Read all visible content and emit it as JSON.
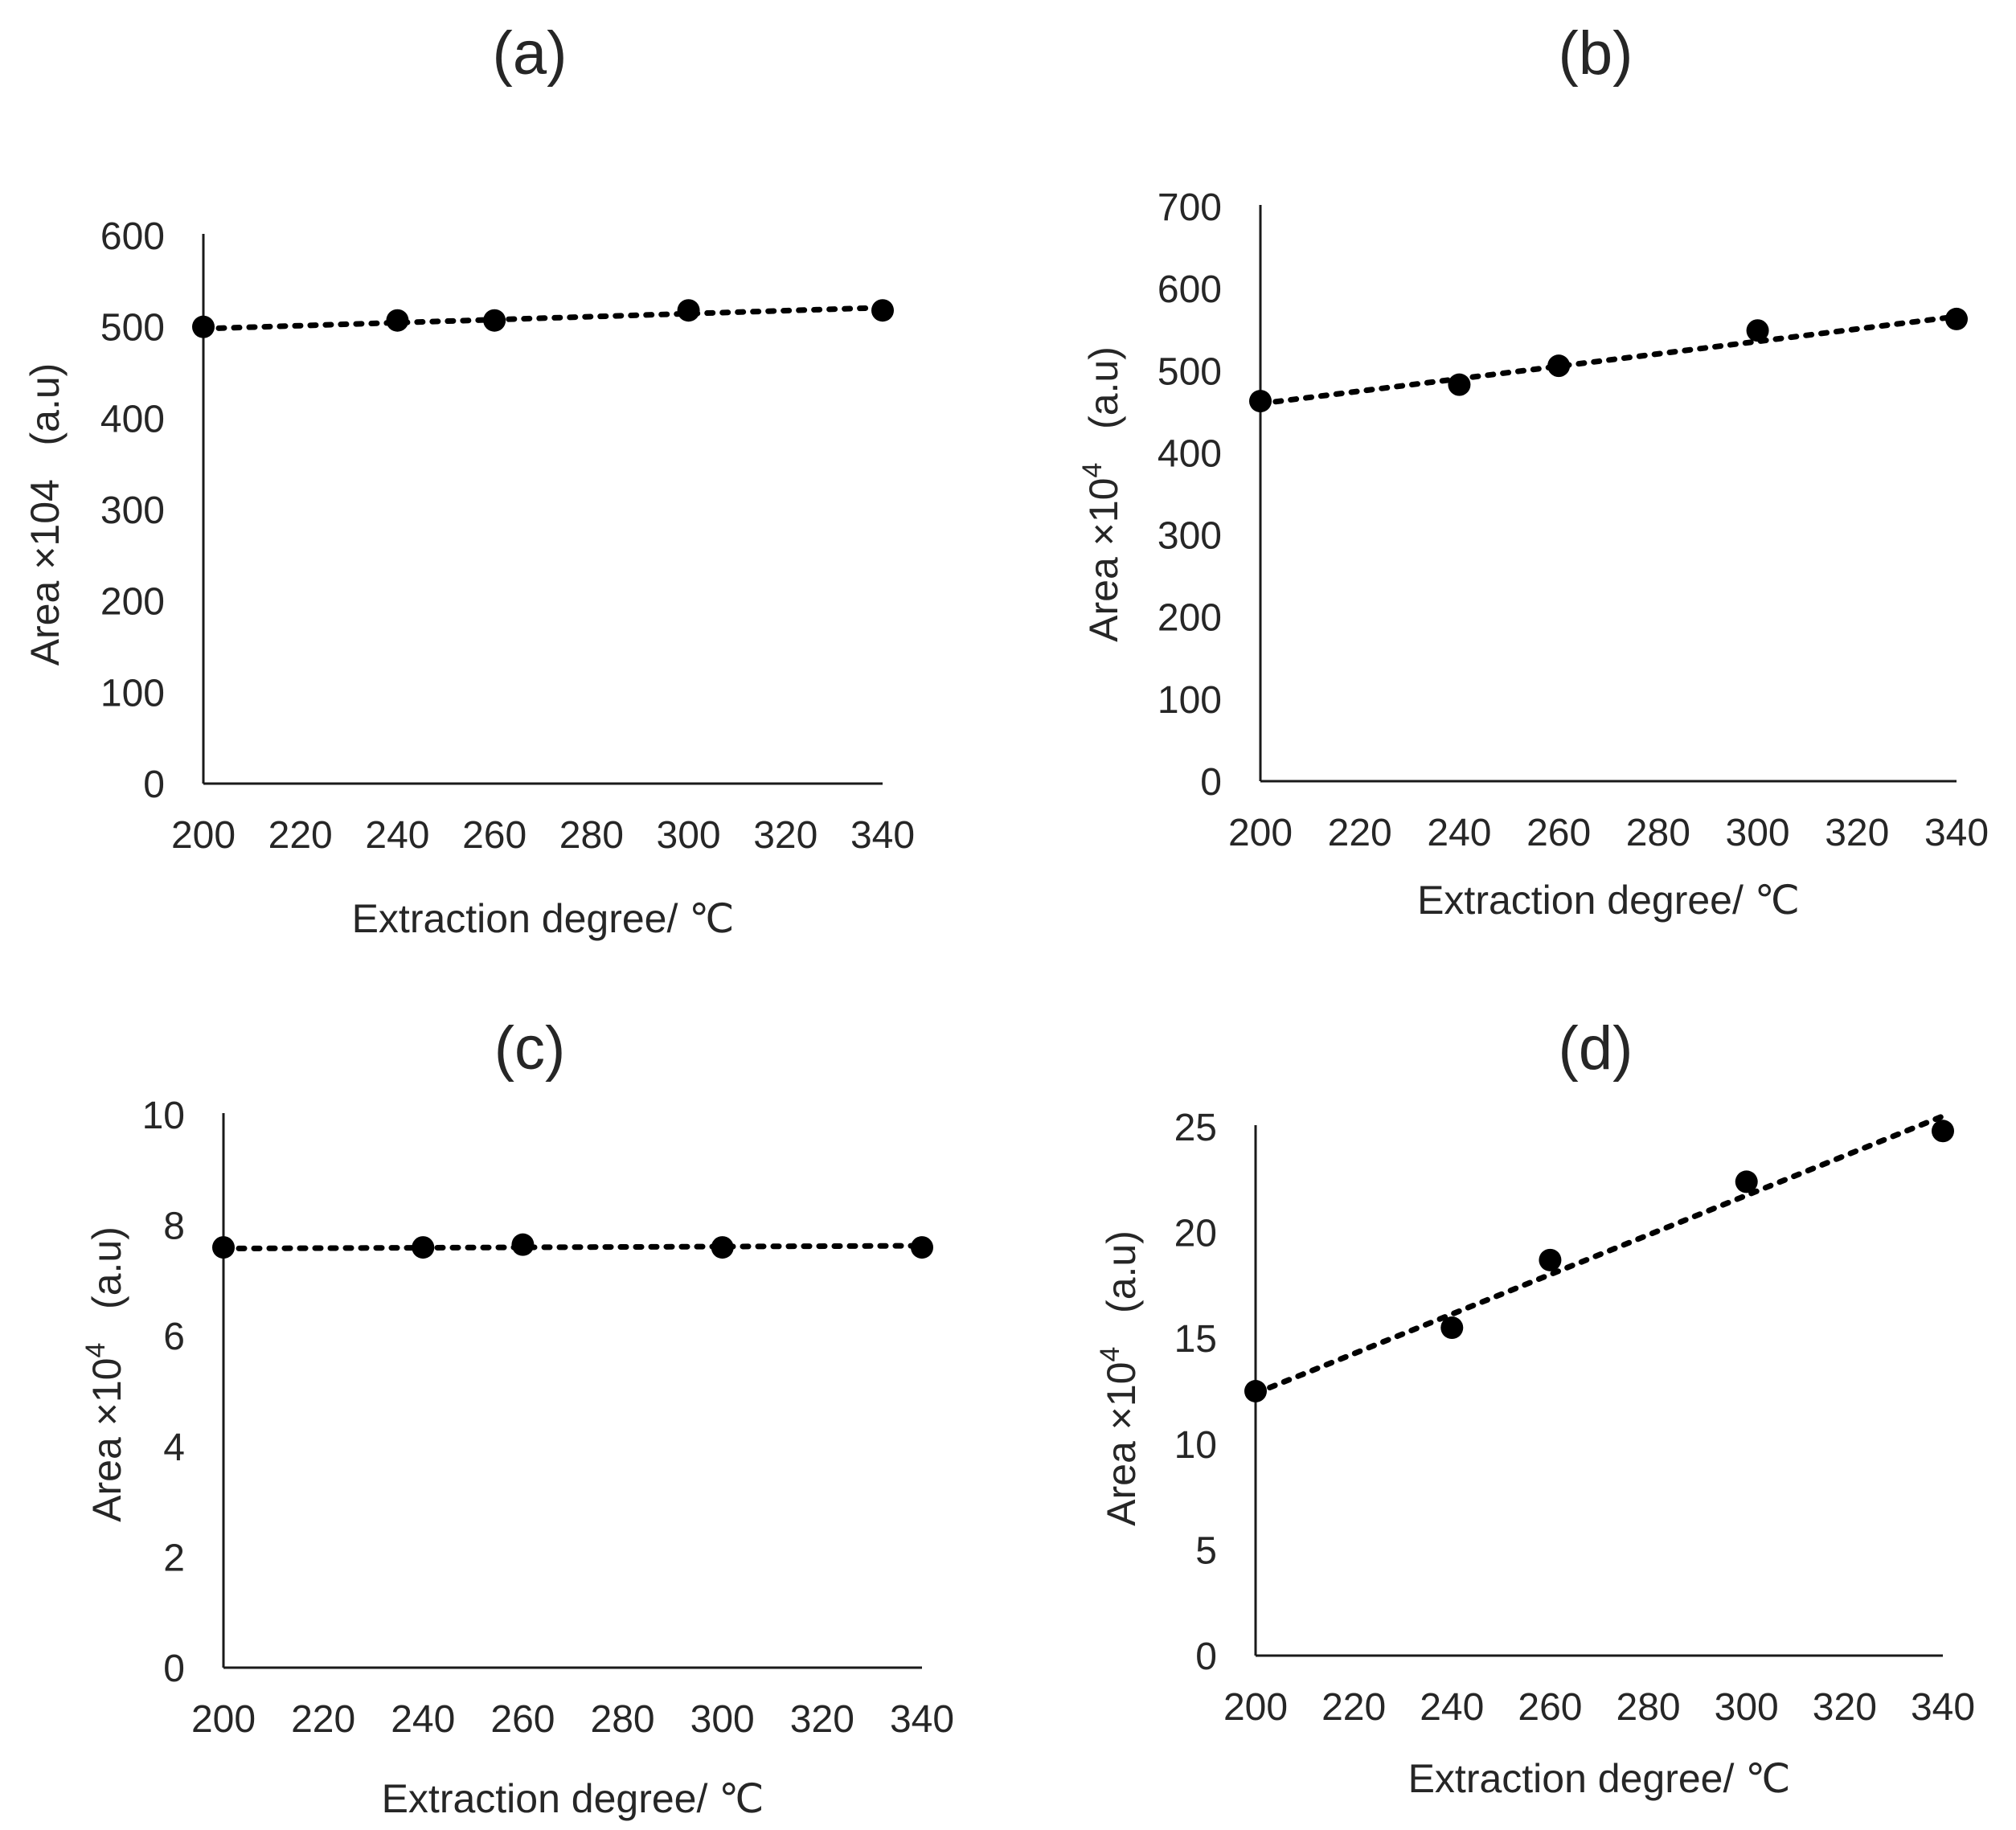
{
  "chart_data": [
    {
      "type": "scatter",
      "panel": "(a)",
      "title": "(a)",
      "xlabel": "Extraction degree/ ℃",
      "ylabel": "Area ×104",
      "ylabel_unit": "(a.u)",
      "xlim": [
        200,
        340
      ],
      "ylim": [
        0,
        600
      ],
      "xticks": [
        200,
        220,
        240,
        260,
        280,
        300,
        320,
        340
      ],
      "yticks": [
        0,
        100,
        200,
        300,
        400,
        500,
        600
      ],
      "series": [
        {
          "name": "data",
          "x": [
            200,
            240,
            260,
            300,
            340
          ],
          "y": [
            500,
            507,
            507,
            518,
            518
          ]
        }
      ],
      "trendline": {
        "style": "dotted",
        "x": [
          200,
          340
        ],
        "y": [
          498,
          521
        ]
      },
      "grid": false,
      "legend": "none"
    },
    {
      "type": "scatter",
      "panel": "(b)",
      "title": "(b)",
      "xlabel": "Extraction degree/ ℃",
      "ylabel": "Area ×10",
      "ylabel_sup": "4",
      "ylabel_unit": "(a.u)",
      "xlim": [
        200,
        340
      ],
      "ylim": [
        0,
        700
      ],
      "xticks": [
        200,
        220,
        240,
        260,
        280,
        300,
        320,
        340
      ],
      "yticks": [
        0,
        100,
        200,
        300,
        400,
        500,
        600,
        700
      ],
      "series": [
        {
          "name": "data",
          "x": [
            200,
            240,
            260,
            300,
            340
          ],
          "y": [
            463,
            483,
            506,
            549,
            563
          ]
        }
      ],
      "trendline": {
        "style": "dotted",
        "x": [
          200,
          340
        ],
        "y": [
          460,
          566
        ]
      },
      "grid": false,
      "legend": "none"
    },
    {
      "type": "scatter",
      "panel": "(c)",
      "title": "(c)",
      "xlabel": "Extraction degree/ ℃",
      "ylabel": "Area ×10",
      "ylabel_sup": "4",
      "ylabel_unit": "(a.u)",
      "xlim": [
        200,
        340
      ],
      "ylim": [
        0,
        10
      ],
      "xticks": [
        200,
        220,
        240,
        260,
        280,
        300,
        320,
        340
      ],
      "yticks": [
        0,
        2,
        4,
        6,
        8,
        10
      ],
      "series": [
        {
          "name": "data",
          "x": [
            200,
            240,
            260,
            300,
            340
          ],
          "y": [
            7.6,
            7.6,
            7.65,
            7.6,
            7.6
          ]
        }
      ],
      "trendline": {
        "style": "dotted",
        "x": [
          200,
          340
        ],
        "y": [
          7.58,
          7.63
        ]
      },
      "grid": false,
      "legend": "none"
    },
    {
      "type": "scatter",
      "panel": "(d)",
      "title": "(d)",
      "xlabel": "Extraction degree/ ℃",
      "ylabel": "Area ×10",
      "ylabel_sup": "4",
      "ylabel_unit": "(a.u)",
      "xlim": [
        200,
        340
      ],
      "ylim": [
        0,
        25
      ],
      "xticks": [
        200,
        220,
        240,
        260,
        280,
        300,
        320,
        340
      ],
      "yticks": [
        0,
        5,
        10,
        15,
        20,
        25
      ],
      "series": [
        {
          "name": "data",
          "x": [
            200,
            240,
            260,
            300,
            340
          ],
          "y": [
            12.5,
            15.5,
            18.7,
            22.4,
            24.8
          ]
        }
      ],
      "trendline": {
        "style": "dotted",
        "x": [
          200,
          340
        ],
        "y": [
          12.4,
          25.5
        ]
      },
      "grid": false,
      "legend": "none"
    }
  ]
}
